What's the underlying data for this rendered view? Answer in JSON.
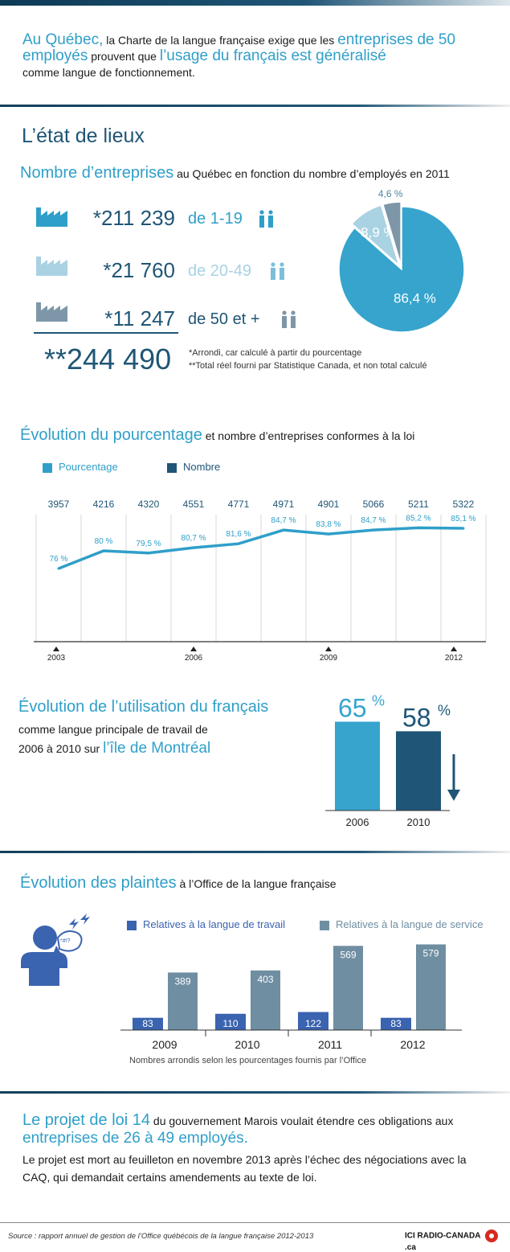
{
  "intro": {
    "p1_a": "Au Québec,",
    "p1_b": " la Charte de la langue française exige que les ",
    "p1_c": "entreprises de 50 employés",
    "p1_d": " prouvent que ",
    "p1_e": "l’usage du français est généralisé",
    "p1_f": " comme langue de fonctionnement."
  },
  "section1": {
    "heading": "L’état de lieux",
    "title_big": "Nombre d’entreprises",
    "title_rest": " au Québec en fonction du nombre d’employés en 2011",
    "rows": [
      {
        "value": "*211 239",
        "label": "de 1-19"
      },
      {
        "value": "*21 760",
        "label": "de 20-49"
      },
      {
        "value": "*11 247",
        "label": "de 50 et +"
      }
    ],
    "total": "**244 490",
    "note1": "*Arrondi, car calculé à partir du pourcentage",
    "note2": "**Total réel fourni par Statistique Canada, et non total calculé"
  },
  "section2": {
    "title_big": "Évolution du pourcentage",
    "title_rest": " et nombre d’entreprises conformes à la loi",
    "legend_pct": "Pourcentage",
    "legend_num": "Nombre"
  },
  "section3": {
    "title_big": "Évolution de l’utilisation du français",
    "line2": "comme langue principale de travail de",
    "line3_a": "2006 à 2010 sur ",
    "line3_b": "l’île de Montréal"
  },
  "section4": {
    "title_big": "Évolution des plaintes",
    "title_rest": " à l’Office de la langue française",
    "legend_travail": "Relatives à la langue de travail",
    "legend_service": "Relatives à la langue de service",
    "note": "Nombres arrondis selon les pourcentages fournis par l’Office",
    "bubble_text": "*#!?"
  },
  "section5": {
    "a": "Le projet de loi 14",
    "b": " du gouvernement Marois voulait étendre ces obligations aux ",
    "c": "entreprises de 26 à 49 employés.",
    "d": "Le projet est mort au feuilleton en novembre 2013 après l’échec des négociations avec la CAQ, qui demandait certains amendements au texte de loi."
  },
  "footer": {
    "source": "Source : rapport annuel de gestion de l’Office québécois de la langue française 2012-2013",
    "logo_a": "ICI RADIO-CANADA",
    "logo_b": ".ca"
  },
  "colors": {
    "light_blue": "#2f9fc9",
    "dark_blue": "#1f5576",
    "pale_blue": "#a9d2e3",
    "grey_blue": "#7d97a8",
    "royal_blue": "#3a63b0",
    "slate": "#6f8ea2"
  },
  "chart_data": [
    {
      "type": "pie",
      "labels": [
        "1-19",
        "20-49",
        "50 et +"
      ],
      "values": [
        86.4,
        8.9,
        4.6
      ],
      "value_labels": [
        "86,4 %",
        "8,9 %",
        "4,6 %"
      ],
      "colors": [
        "#36a4cd",
        "#a9d2e3",
        "#7d97a8"
      ]
    },
    {
      "type": "line",
      "x": [
        2003,
        2004,
        2005,
        2006,
        2007,
        2008,
        2009,
        2010,
        2011,
        2012
      ],
      "x_ticks": [
        "2003",
        "2006",
        "2009",
        "2012"
      ],
      "series": [
        {
          "name": "Pourcentage",
          "values": [
            76,
            80,
            79.5,
            80.7,
            81.6,
            84.7,
            83.8,
            84.7,
            85.2,
            85.1
          ],
          "labels": [
            "76 %",
            "80 %",
            "79,5 %",
            "80,7 %",
            "81,6 %",
            "84,7 %",
            "83,8 %",
            "84,7 %",
            "85,2 %",
            "85,1 %"
          ]
        },
        {
          "name": "Nombre",
          "values": [
            3957,
            4216,
            4320,
            4551,
            4771,
            4971,
            4901,
            5066,
            5211,
            5322
          ],
          "labels": [
            "3957",
            "4216",
            "4320",
            "4551",
            "4771",
            "4971",
            "4901",
            "5066",
            "5211",
            "5322"
          ]
        }
      ]
    },
    {
      "type": "bar",
      "categories": [
        "2006",
        "2010"
      ],
      "values": [
        65,
        58
      ],
      "value_labels": [
        "65",
        "58"
      ],
      "unit": "%",
      "colors": [
        "#36a4cd",
        "#1f5576"
      ]
    },
    {
      "type": "bar",
      "categories": [
        "2009",
        "2010",
        "2011",
        "2012"
      ],
      "series": [
        {
          "name": "Relatives à la langue de travail",
          "values": [
            83,
            110,
            122,
            83
          ],
          "color": "#3a63b0"
        },
        {
          "name": "Relatives à la langue de service",
          "values": [
            389,
            403,
            569,
            579
          ],
          "color": "#6f8ea2"
        }
      ]
    }
  ]
}
